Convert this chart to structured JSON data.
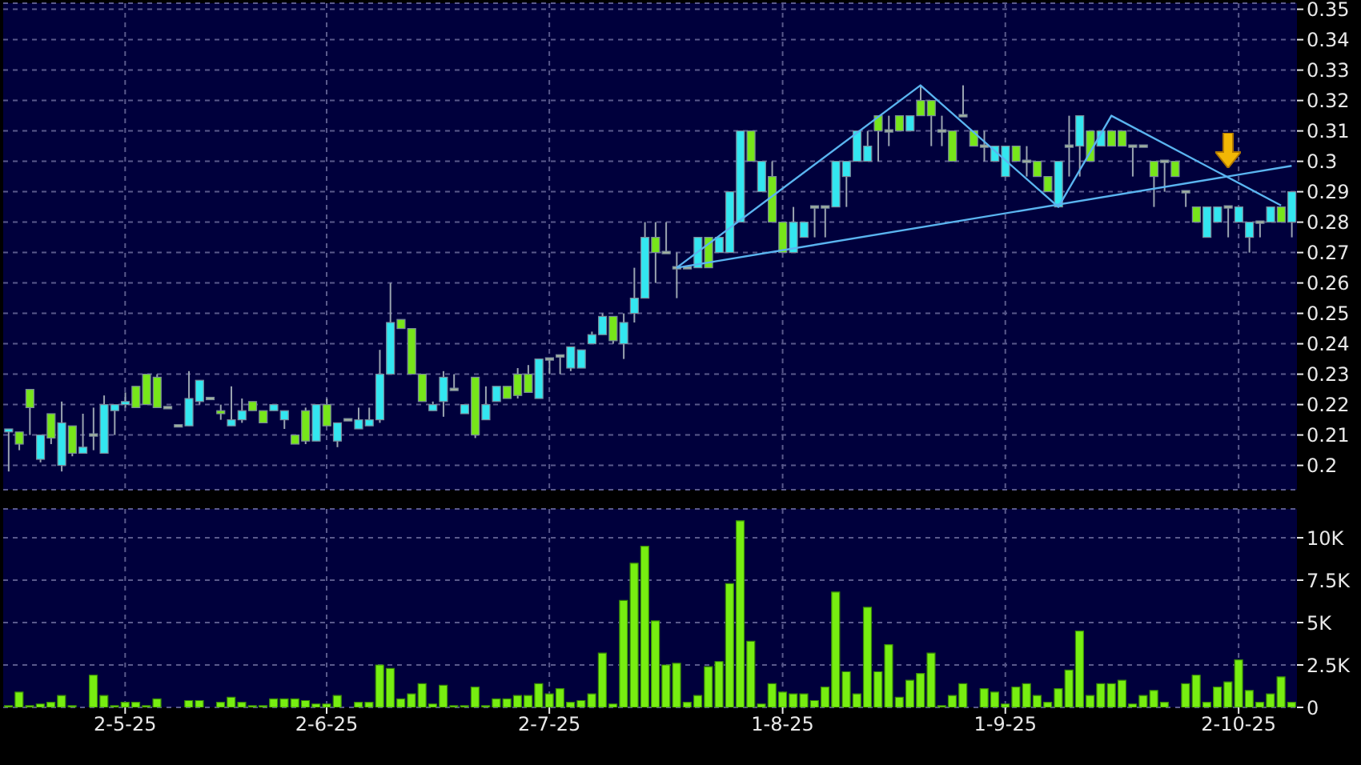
{
  "chart_data": [
    {
      "type": "candlestick",
      "categories": [
        null,
        null,
        null,
        null,
        null,
        null,
        null,
        null,
        null,
        null,
        null,
        null,
        null,
        null,
        null,
        null,
        null,
        null,
        null,
        null,
        null,
        null,
        null,
        null,
        null,
        null,
        null,
        null,
        null,
        null,
        null,
        null,
        null,
        null,
        null,
        null,
        null,
        null,
        null,
        null,
        null,
        null,
        null,
        null,
        null,
        null,
        null,
        null,
        null,
        null,
        null,
        null,
        null,
        null,
        null,
        null,
        null,
        null,
        null,
        null,
        null,
        null,
        null,
        null,
        null,
        null,
        null,
        null,
        null,
        null,
        null,
        null,
        null,
        null,
        null,
        null,
        null,
        null,
        null,
        null,
        null,
        null,
        null,
        null,
        null,
        null,
        null,
        null,
        null,
        null,
        null,
        null,
        null,
        null,
        null,
        null,
        null,
        null,
        null,
        null,
        null,
        null,
        null,
        null,
        null,
        null,
        null,
        null,
        null,
        null,
        null,
        null,
        null,
        null,
        null,
        null,
        null,
        null,
        null,
        null,
        null,
        null
      ],
      "ohlc": [
        [
          0.211,
          0.212,
          0.198,
          0.212
        ],
        [
          0.211,
          0.211,
          0.205,
          0.207
        ],
        [
          0.225,
          0.225,
          0.21,
          0.219
        ],
        [
          0.202,
          0.21,
          0.201,
          0.21
        ],
        [
          0.217,
          0.217,
          0.207,
          0.209
        ],
        [
          0.2,
          0.221,
          0.198,
          0.214
        ],
        [
          0.213,
          0.213,
          0.203,
          0.204
        ],
        [
          0.204,
          0.217,
          0.204,
          0.206
        ],
        [
          0.21,
          0.219,
          0.205,
          0.21
        ],
        [
          0.204,
          0.223,
          0.204,
          0.22
        ],
        [
          0.218,
          0.22,
          0.21,
          0.22
        ],
        [
          0.22,
          0.224,
          0.219,
          0.221
        ],
        [
          0.226,
          0.226,
          0.219,
          0.219
        ],
        [
          0.23,
          0.23,
          0.22,
          0.22
        ],
        [
          0.229,
          0.23,
          0.219,
          0.219
        ],
        [
          0.219,
          0.219,
          0.219,
          0.219
        ],
        [
          0.213,
          0.213,
          0.213,
          0.213
        ],
        [
          0.213,
          0.231,
          0.213,
          0.222
        ],
        [
          0.221,
          0.228,
          0.22,
          0.228
        ],
        [
          0.222,
          0.222,
          0.222,
          0.222
        ],
        [
          0.218,
          0.22,
          0.215,
          0.217
        ],
        [
          0.213,
          0.226,
          0.213,
          0.215
        ],
        [
          0.215,
          0.222,
          0.214,
          0.218
        ],
        [
          0.221,
          0.221,
          0.218,
          0.218
        ],
        [
          0.218,
          0.218,
          0.214,
          0.214
        ],
        [
          0.218,
          0.22,
          0.218,
          0.22
        ],
        [
          0.215,
          0.218,
          0.212,
          0.218
        ],
        [
          0.21,
          0.21,
          0.207,
          0.207
        ],
        [
          0.218,
          0.219,
          0.207,
          0.208
        ],
        [
          0.208,
          0.22,
          0.208,
          0.22
        ],
        [
          0.22,
          0.222,
          0.213,
          0.213
        ],
        [
          0.208,
          0.214,
          0.206,
          0.214
        ],
        [
          0.215,
          0.215,
          0.215,
          0.215
        ],
        [
          0.212,
          0.219,
          0.212,
          0.215
        ],
        [
          0.213,
          0.219,
          0.213,
          0.215
        ],
        [
          0.215,
          0.238,
          0.214,
          0.23
        ],
        [
          0.23,
          0.26,
          0.23,
          0.247
        ],
        [
          0.248,
          0.248,
          0.245,
          0.245
        ],
        [
          0.245,
          0.245,
          0.23,
          0.23
        ],
        [
          0.23,
          0.23,
          0.221,
          0.221
        ],
        [
          0.218,
          0.221,
          0.218,
          0.22
        ],
        [
          0.221,
          0.231,
          0.216,
          0.229
        ],
        [
          0.225,
          0.23,
          0.225,
          0.225
        ],
        [
          0.217,
          0.22,
          0.217,
          0.22
        ],
        [
          0.229,
          0.229,
          0.209,
          0.21
        ],
        [
          0.215,
          0.226,
          0.215,
          0.22
        ],
        [
          0.221,
          0.226,
          0.221,
          0.226
        ],
        [
          0.226,
          0.226,
          0.222,
          0.222
        ],
        [
          0.23,
          0.232,
          0.222,
          0.223
        ],
        [
          0.23,
          0.233,
          0.224,
          0.224
        ],
        [
          0.222,
          0.235,
          0.222,
          0.235
        ],
        [
          0.235,
          0.235,
          0.23,
          0.235
        ],
        [
          0.236,
          0.236,
          0.23,
          0.236
        ],
        [
          0.232,
          0.239,
          0.231,
          0.239
        ],
        [
          0.232,
          0.238,
          0.232,
          0.238
        ],
        [
          0.24,
          0.244,
          0.24,
          0.243
        ],
        [
          0.243,
          0.25,
          0.243,
          0.249
        ],
        [
          0.249,
          0.249,
          0.24,
          0.241
        ],
        [
          0.24,
          0.25,
          0.235,
          0.247
        ],
        [
          0.25,
          0.265,
          0.247,
          0.255
        ],
        [
          0.255,
          0.28,
          0.255,
          0.275
        ],
        [
          0.275,
          0.28,
          0.26,
          0.27
        ],
        [
          0.27,
          0.28,
          0.27,
          0.27
        ],
        [
          0.265,
          0.27,
          0.255,
          0.265
        ],
        [
          0.265,
          0.265,
          0.265,
          0.265
        ],
        [
          0.265,
          0.275,
          0.265,
          0.275
        ],
        [
          0.275,
          0.275,
          0.265,
          0.265
        ],
        [
          0.27,
          0.275,
          0.27,
          0.275
        ],
        [
          0.27,
          0.29,
          0.27,
          0.29
        ],
        [
          0.28,
          0.31,
          0.28,
          0.31
        ],
        [
          0.31,
          0.31,
          0.3,
          0.3
        ],
        [
          0.29,
          0.3,
          0.29,
          0.3
        ],
        [
          0.295,
          0.3,
          0.28,
          0.28
        ],
        [
          0.28,
          0.28,
          0.27,
          0.27
        ],
        [
          0.27,
          0.285,
          0.27,
          0.28
        ],
        [
          0.275,
          0.28,
          0.275,
          0.28
        ],
        [
          0.285,
          0.285,
          0.275,
          0.285
        ],
        [
          0.285,
          0.285,
          0.275,
          0.285
        ],
        [
          0.285,
          0.3,
          0.285,
          0.3
        ],
        [
          0.295,
          0.3,
          0.285,
          0.3
        ],
        [
          0.3,
          0.31,
          0.3,
          0.31
        ],
        [
          0.3,
          0.31,
          0.3,
          0.305
        ],
        [
          0.315,
          0.315,
          0.3,
          0.31
        ],
        [
          0.31,
          0.315,
          0.305,
          0.31
        ],
        [
          0.315,
          0.315,
          0.31,
          0.31
        ],
        [
          0.31,
          0.315,
          0.31,
          0.315
        ],
        [
          0.32,
          0.325,
          0.315,
          0.315
        ],
        [
          0.32,
          0.32,
          0.305,
          0.315
        ],
        [
          0.31,
          0.315,
          0.305,
          0.31
        ],
        [
          0.31,
          0.31,
          0.3,
          0.3
        ],
        [
          0.315,
          0.325,
          0.315,
          0.315
        ],
        [
          0.31,
          0.31,
          0.305,
          0.305
        ],
        [
          0.305,
          0.31,
          0.3,
          0.305
        ],
        [
          0.3,
          0.305,
          0.3,
          0.305
        ],
        [
          0.295,
          0.305,
          0.295,
          0.305
        ],
        [
          0.305,
          0.305,
          0.3,
          0.3
        ],
        [
          0.3,
          0.305,
          0.295,
          0.3
        ],
        [
          0.3,
          0.3,
          0.295,
          0.295
        ],
        [
          0.295,
          0.295,
          0.29,
          0.29
        ],
        [
          0.285,
          0.3,
          0.285,
          0.3
        ],
        [
          0.305,
          0.315,
          0.295,
          0.305
        ],
        [
          0.305,
          0.315,
          0.295,
          0.315
        ],
        [
          0.31,
          0.31,
          0.3,
          0.3
        ],
        [
          0.305,
          0.31,
          0.305,
          0.31
        ],
        [
          0.31,
          0.31,
          0.305,
          0.305
        ],
        [
          0.31,
          0.31,
          0.305,
          0.305
        ],
        [
          0.305,
          0.305,
          0.295,
          0.305
        ],
        [
          0.305,
          0.305,
          0.305,
          0.305
        ],
        [
          0.3,
          0.3,
          0.285,
          0.295
        ],
        [
          0.3,
          0.3,
          0.29,
          0.3
        ],
        [
          0.3,
          0.3,
          0.295,
          0.295
        ],
        [
          0.29,
          0.29,
          0.285,
          0.29
        ],
        [
          0.285,
          0.285,
          0.28,
          0.28
        ],
        [
          0.275,
          0.285,
          0.275,
          0.285
        ],
        [
          0.28,
          0.285,
          0.28,
          0.285
        ],
        [
          0.285,
          0.285,
          0.275,
          0.285
        ],
        [
          0.28,
          0.285,
          0.28,
          0.285
        ],
        [
          0.275,
          0.28,
          0.27,
          0.28
        ],
        [
          0.28,
          0.28,
          0.275,
          0.28
        ],
        [
          0.28,
          0.285,
          0.28,
          0.285
        ],
        [
          0.285,
          0.285,
          0.28,
          0.28
        ],
        [
          0.28,
          0.29,
          0.275,
          0.29
        ]
      ],
      "colors": [
        "#33e6f0",
        "#77e61a",
        "#77e61a",
        "#33e6f0",
        "#77e61a",
        "#33e6f0",
        "#77e61a",
        "#33e6f0",
        "#a8b8a0",
        "#33e6f0",
        "#33e6f0",
        "#33e6f0",
        "#77e61a",
        "#77e61a",
        "#77e61a",
        "#a8b8a0",
        "#a8b8a0",
        "#33e6f0",
        "#33e6f0",
        "#a8b8a0",
        "#77e61a",
        "#33e6f0",
        "#33e6f0",
        "#77e61a",
        "#77e61a",
        "#33e6f0",
        "#33e6f0",
        "#77e61a",
        "#77e61a",
        "#33e6f0",
        "#77e61a",
        "#33e6f0",
        "#a8b8a0",
        "#33e6f0",
        "#33e6f0",
        "#33e6f0",
        "#33e6f0",
        "#77e61a",
        "#77e61a",
        "#77e61a",
        "#33e6f0",
        "#33e6f0",
        "#a8b8a0",
        "#33e6f0",
        "#77e61a",
        "#33e6f0",
        "#33e6f0",
        "#77e61a",
        "#77e61a",
        "#77e61a",
        "#33e6f0",
        "#a8b8a0",
        "#a8b8a0",
        "#33e6f0",
        "#33e6f0",
        "#33e6f0",
        "#33e6f0",
        "#77e61a",
        "#33e6f0",
        "#33e6f0",
        "#33e6f0",
        "#77e61a",
        "#a8b8a0",
        "#a8b8a0",
        "#a8b8a0",
        "#33e6f0",
        "#77e61a",
        "#33e6f0",
        "#33e6f0",
        "#33e6f0",
        "#77e61a",
        "#33e6f0",
        "#77e61a",
        "#77e61a",
        "#33e6f0",
        "#33e6f0",
        "#a8b8a0",
        "#a8b8a0",
        "#33e6f0",
        "#33e6f0",
        "#33e6f0",
        "#33e6f0",
        "#77e61a",
        "#a8b8a0",
        "#77e61a",
        "#33e6f0",
        "#77e61a",
        "#77e61a",
        "#a8b8a0",
        "#77e61a",
        "#a8b8a0",
        "#77e61a",
        "#a8b8a0",
        "#33e6f0",
        "#33e6f0",
        "#77e61a",
        "#a8b8a0",
        "#77e61a",
        "#77e61a",
        "#33e6f0",
        "#a8b8a0",
        "#33e6f0",
        "#77e61a",
        "#33e6f0",
        "#77e61a",
        "#77e61a",
        "#a8b8a0",
        "#a8b8a0",
        "#77e61a",
        "#a8b8a0",
        "#77e61a",
        "#a8b8a0",
        "#77e61a",
        "#33e6f0",
        "#33e6f0",
        "#a8b8a0",
        "#33e6f0",
        "#33e6f0",
        "#a8b8a0",
        "#33e6f0",
        "#77e61a",
        "#33e6f0"
      ],
      "series": [
        {
          "type": "line",
          "color": "#5ab4f0",
          "values": [
            null,
            null,
            null,
            null,
            null,
            null,
            null,
            null,
            null,
            null,
            null,
            null,
            null,
            null,
            null,
            null,
            null,
            null,
            null,
            null,
            null,
            null,
            null,
            null,
            null,
            null,
            null,
            null,
            null,
            null,
            null,
            null,
            null,
            null,
            null,
            null,
            null,
            null,
            null,
            null,
            null,
            null,
            null,
            null,
            null,
            null,
            null,
            null,
            null,
            null,
            null,
            null,
            null,
            null,
            null,
            null,
            null,
            null,
            null,
            null,
            null,
            null,
            null,
            0.265,
            null,
            null,
            null,
            null,
            null,
            null,
            null,
            null,
            null,
            null,
            null,
            null,
            null,
            null,
            null,
            null,
            null,
            null,
            null,
            null,
            null,
            null,
            null,
            null,
            null,
            null,
            null,
            null,
            null,
            null,
            null,
            null,
            null,
            null,
            null,
            null,
            null,
            null,
            null,
            null,
            null,
            null,
            null,
            null,
            null,
            null,
            null,
            null,
            null,
            null,
            null,
            null,
            null,
            null,
            null,
            null,
            null,
            0.2985
          ]
        },
        {
          "type": "line",
          "color": "#5ab4f0",
          "values": [
            null,
            null,
            null,
            null,
            null,
            null,
            null,
            null,
            null,
            null,
            null,
            null,
            null,
            null,
            null,
            null,
            null,
            null,
            null,
            null,
            null,
            null,
            null,
            null,
            null,
            null,
            null,
            null,
            null,
            null,
            null,
            null,
            null,
            null,
            null,
            null,
            null,
            null,
            null,
            null,
            null,
            null,
            null,
            null,
            null,
            null,
            null,
            null,
            null,
            null,
            null,
            null,
            null,
            null,
            null,
            null,
            null,
            null,
            null,
            null,
            null,
            null,
            null,
            0.265,
            null,
            null,
            null,
            null,
            null,
            null,
            null,
            null,
            null,
            null,
            null,
            null,
            null,
            null,
            null,
            null,
            null,
            null,
            null,
            null,
            null,
            null,
            0.325,
            null,
            null,
            null,
            null,
            null,
            null,
            null,
            null,
            null,
            null,
            null,
            null,
            0.285,
            null,
            null,
            null,
            null,
            0.315,
            null,
            null,
            null,
            null,
            null,
            null,
            null,
            null,
            null,
            null,
            null,
            null,
            null,
            null,
            null,
            0.2855,
            null
          ]
        }
      ],
      "ylim": [
        0.192,
        0.352
      ],
      "yticks": [
        0.2,
        0.21,
        0.22,
        0.23,
        0.24,
        0.25,
        0.26,
        0.27,
        0.28,
        0.29,
        0.3,
        0.31,
        0.32,
        0.33,
        0.34,
        0.35
      ],
      "grid": true,
      "tick_labels": "y"
    },
    {
      "type": "bar",
      "categories": [
        null,
        null,
        null,
        null,
        null,
        null,
        null,
        null,
        null,
        null,
        null,
        "2-5-25",
        null,
        null,
        null,
        null,
        null,
        null,
        null,
        null,
        null,
        null,
        null,
        null,
        null,
        null,
        null,
        null,
        null,
        null,
        "2-6-25",
        null,
        null,
        null,
        null,
        null,
        null,
        null,
        null,
        null,
        null,
        null,
        null,
        null,
        null,
        null,
        null,
        null,
        null,
        null,
        null,
        "2-7-25",
        null,
        null,
        null,
        null,
        null,
        null,
        null,
        null,
        null,
        null,
        null,
        null,
        null,
        null,
        null,
        null,
        null,
        null,
        null,
        null,
        null,
        "1-8-25",
        null,
        null,
        null,
        null,
        null,
        null,
        null,
        null,
        null,
        null,
        null,
        null,
        null,
        null,
        null,
        null,
        null,
        null,
        null,
        null,
        "1-9-25",
        null,
        null,
        null,
        null,
        null,
        null,
        null,
        null,
        null,
        null,
        null,
        null,
        null,
        null,
        null,
        null,
        null,
        null,
        null,
        null,
        null,
        "2-10-25",
        null,
        null,
        null,
        null,
        null
      ],
      "values": [
        100,
        900,
        100,
        200,
        300,
        700,
        100,
        0,
        1900,
        700,
        100,
        300,
        300,
        100,
        500,
        0,
        0,
        400,
        400,
        0,
        300,
        600,
        300,
        100,
        100,
        500,
        500,
        500,
        400,
        200,
        200,
        700,
        0,
        300,
        300,
        2500,
        2300,
        500,
        800,
        1400,
        200,
        1300,
        100,
        100,
        1200,
        100,
        500,
        500,
        700,
        700,
        1400,
        800,
        1100,
        300,
        400,
        800,
        3200,
        200,
        6300,
        8500,
        9500,
        5100,
        2500,
        2600,
        300,
        700,
        2400,
        2700,
        7300,
        11000,
        3900,
        200,
        1400,
        900,
        800,
        800,
        400,
        1200,
        6800,
        2100,
        800,
        5900,
        2100,
        3700,
        600,
        1600,
        2000,
        3200,
        100,
        700,
        1400,
        0,
        1100,
        900,
        200,
        1200,
        1400,
        700,
        300,
        1100,
        2200,
        4500,
        700,
        1400,
        1400,
        1600,
        200,
        700,
        1000,
        300,
        0,
        1400,
        1900,
        300,
        1200,
        1500,
        2800,
        1000,
        300,
        800,
        1800,
        300
      ],
      "color": "#77ee11",
      "ylim": [
        0,
        11700
      ],
      "yticks": [
        0,
        {
          "value": 2500,
          "label": "2.5K"
        },
        {
          "value": 5000,
          "label": "5K"
        },
        {
          "value": 7500,
          "label": "7.5K"
        },
        {
          "value": 10000,
          "label": "10K"
        }
      ],
      "grid": true
    }
  ]
}
